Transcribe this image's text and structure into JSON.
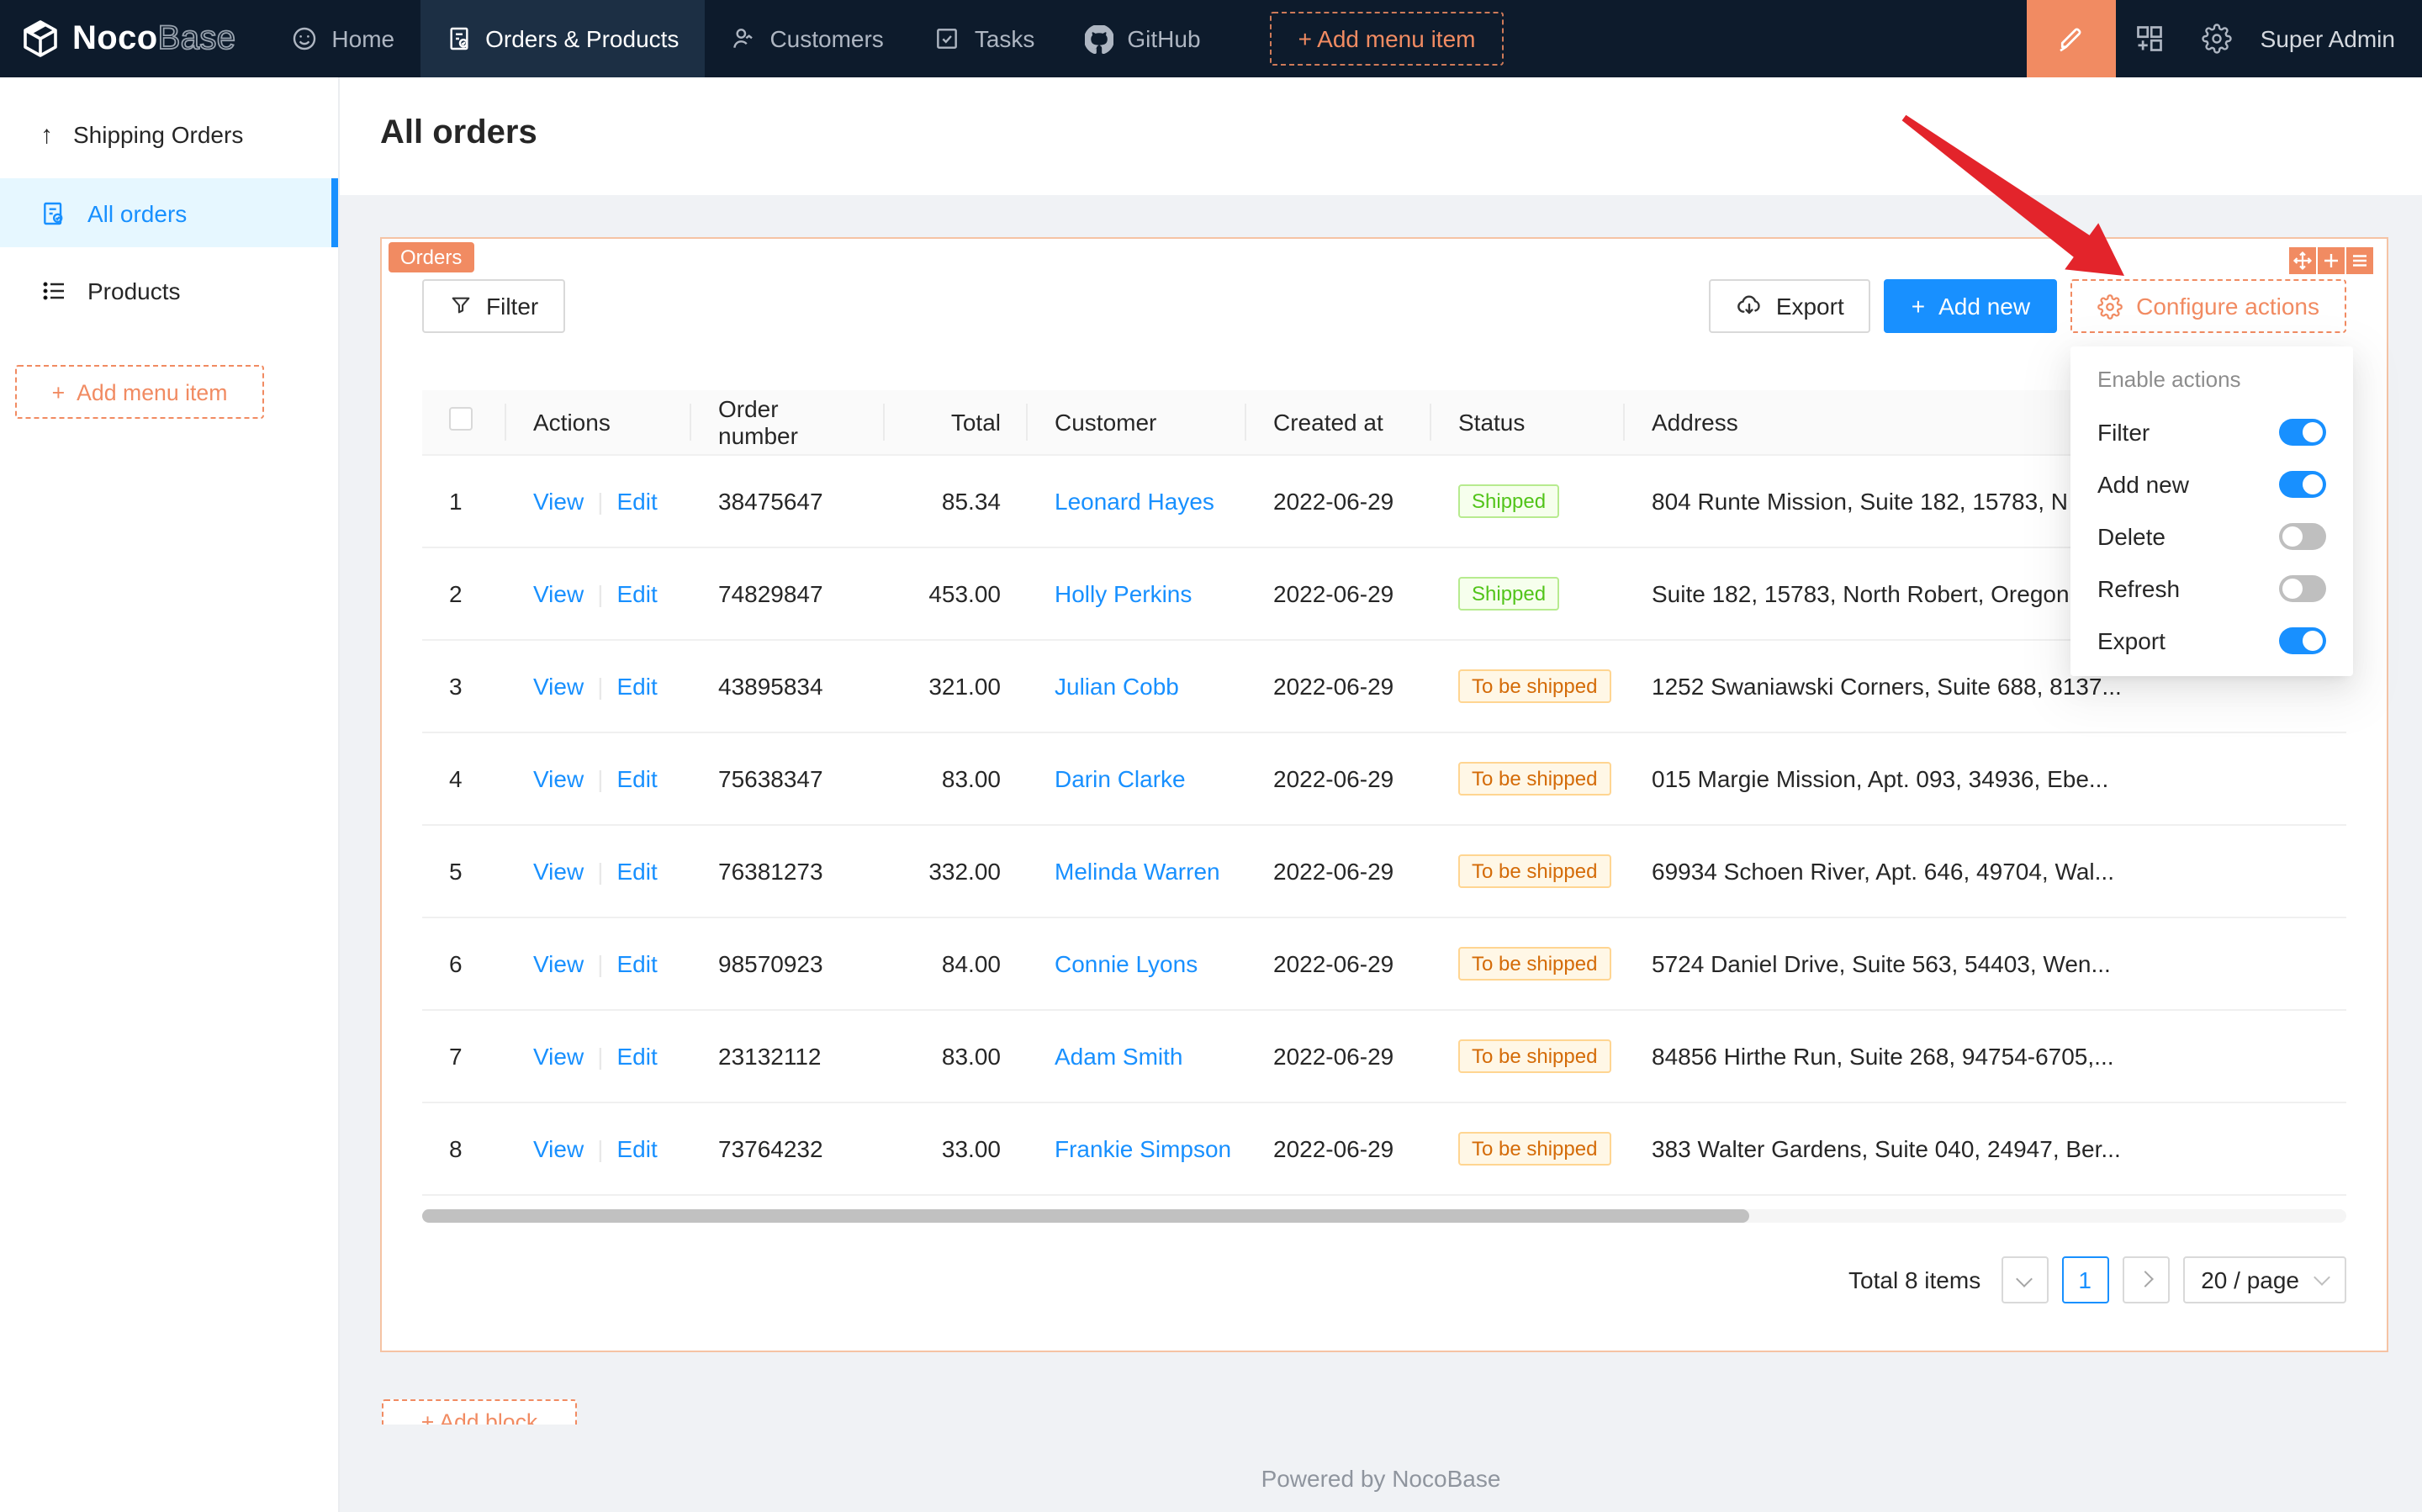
{
  "colors": {
    "navbar_bg": "#0d1b2c",
    "accent_blue": "#1890ff",
    "designer_orange": "#f18b62",
    "tag_success_text": "#52c41a",
    "tag_warning_text": "#d46b08",
    "annotation_arrow": "#e3242b"
  },
  "navbar": {
    "logo": {
      "noco": "Noco",
      "base": "Base"
    },
    "items": [
      {
        "label": "Home",
        "icon": "smiley-icon",
        "active": false
      },
      {
        "label": "Orders & Products",
        "icon": "receipt-icon",
        "active": true
      },
      {
        "label": "Customers",
        "icon": "person-icon",
        "active": false
      },
      {
        "label": "Tasks",
        "icon": "check-square-icon",
        "active": false
      },
      {
        "label": "GitHub",
        "icon": "github-icon",
        "active": false
      }
    ],
    "add_menu_item_label": "+ Add menu item",
    "user": "Super Admin",
    "right_icons": [
      "highlighter-icon",
      "plugin-icon",
      "gear-icon"
    ]
  },
  "sidebar": {
    "items": [
      {
        "label": "Shipping Orders",
        "icon": "arrow-up-icon",
        "active": false
      },
      {
        "label": "All orders",
        "icon": "file-done-icon",
        "active": true
      },
      {
        "label": "Products",
        "icon": "list-icon",
        "active": false
      }
    ],
    "add_menu_item_label": "Add menu item"
  },
  "page": {
    "title": "All orders"
  },
  "block": {
    "tag": "Orders",
    "toolbar": {
      "filter_label": "Filter",
      "export_label": "Export",
      "add_new_label": "Add new",
      "configure_actions_label": "Configure actions"
    },
    "table": {
      "columns": [
        "Actions",
        "Order number",
        "Total",
        "Customer",
        "Created at",
        "Status",
        "Address"
      ],
      "action_labels": {
        "view": "View",
        "edit": "Edit"
      },
      "rows": [
        {
          "index": "1",
          "order_number": "38475647",
          "total": "85.34",
          "customer": "Leonard Hayes",
          "created_at": "2022-06-29",
          "status": "Shipped",
          "status_type": "success",
          "address": "804 Runte Mission, Suite 182, 15783, N"
        },
        {
          "index": "2",
          "order_number": "74829847",
          "total": "453.00",
          "customer": "Holly Perkins",
          "created_at": "2022-06-29",
          "status": "Shipped",
          "status_type": "success",
          "address": "Suite 182, 15783, North Robert, Oregon"
        },
        {
          "index": "3",
          "order_number": "43895834",
          "total": "321.00",
          "customer": "Julian Cobb",
          "created_at": "2022-06-29",
          "status": "To be shipped",
          "status_type": "warning",
          "address": "1252 Swaniawski Corners, Suite 688, 8137..."
        },
        {
          "index": "4",
          "order_number": "75638347",
          "total": "83.00",
          "customer": "Darin Clarke",
          "created_at": "2022-06-29",
          "status": "To be shipped",
          "status_type": "warning",
          "address": "015 Margie Mission, Apt. 093, 34936, Ebe..."
        },
        {
          "index": "5",
          "order_number": "76381273",
          "total": "332.00",
          "customer": "Melinda Warren",
          "created_at": "2022-06-29",
          "status": "To be shipped",
          "status_type": "warning",
          "address": "69934 Schoen River, Apt. 646, 49704, Wal..."
        },
        {
          "index": "6",
          "order_number": "98570923",
          "total": "84.00",
          "customer": "Connie Lyons",
          "created_at": "2022-06-29",
          "status": "To be shipped",
          "status_type": "warning",
          "address": "5724 Daniel Drive, Suite 563, 54403, Wen..."
        },
        {
          "index": "7",
          "order_number": "23132112",
          "total": "83.00",
          "customer": "Adam Smith",
          "created_at": "2022-06-29",
          "status": "To be shipped",
          "status_type": "warning",
          "address": "84856 Hirthe Run, Suite 268, 94754-6705,..."
        },
        {
          "index": "8",
          "order_number": "73764232",
          "total": "33.00",
          "customer": "Frankie Simpson",
          "created_at": "2022-06-29",
          "status": "To be shipped",
          "status_type": "warning",
          "address": "383 Walter Gardens, Suite 040, 24947, Ber..."
        }
      ]
    },
    "pagination": {
      "total_text": "Total 8 items",
      "current_page": "1",
      "page_size": "20 / page"
    }
  },
  "dropdown": {
    "header": "Enable actions",
    "items": [
      {
        "label": "Filter",
        "on": true
      },
      {
        "label": "Add new",
        "on": true
      },
      {
        "label": "Delete",
        "on": false
      },
      {
        "label": "Refresh",
        "on": false
      },
      {
        "label": "Export",
        "on": true
      }
    ]
  },
  "add_block_label": "+ Add block",
  "footer": {
    "text": "Powered by NocoBase"
  },
  "annotation": {
    "type": "red-arrow",
    "color": "#e3242b"
  }
}
